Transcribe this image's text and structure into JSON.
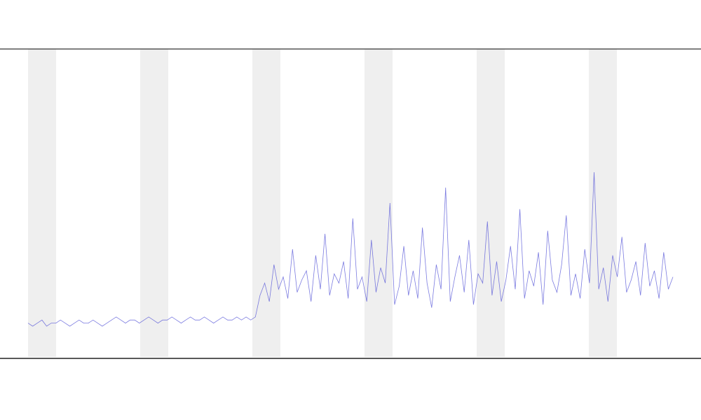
{
  "chart_data": {
    "type": "line",
    "color": "#5a5ad8",
    "values": [
      11,
      10,
      11,
      12,
      10,
      11,
      11,
      12,
      11,
      10,
      11,
      12,
      11,
      11,
      12,
      11,
      10,
      11,
      12,
      13,
      12,
      11,
      12,
      12,
      11,
      12,
      13,
      12,
      11,
      12,
      12,
      13,
      12,
      11,
      12,
      13,
      12,
      12,
      13,
      12,
      11,
      12,
      13,
      12,
      12,
      13,
      12,
      13,
      12,
      13,
      20,
      24,
      18,
      30,
      22,
      26,
      19,
      35,
      21,
      25,
      28,
      18,
      33,
      22,
      40,
      20,
      27,
      24,
      31,
      19,
      45,
      22,
      26,
      18,
      38,
      21,
      29,
      24,
      50,
      17,
      23,
      36,
      20,
      28,
      19,
      42,
      24,
      16,
      30,
      22,
      55,
      18,
      26,
      33,
      21,
      38,
      17,
      27,
      24,
      44,
      20,
      31,
      18,
      25,
      36,
      22,
      48,
      19,
      28,
      23,
      34,
      17,
      41,
      25,
      21,
      30,
      46,
      20,
      27,
      19,
      35,
      24,
      60,
      22,
      29,
      18,
      33,
      26,
      39,
      21,
      25,
      31,
      20,
      37,
      23,
      28,
      19,
      34,
      22,
      26
    ],
    "ylim": [
      0,
      100
    ]
  }
}
